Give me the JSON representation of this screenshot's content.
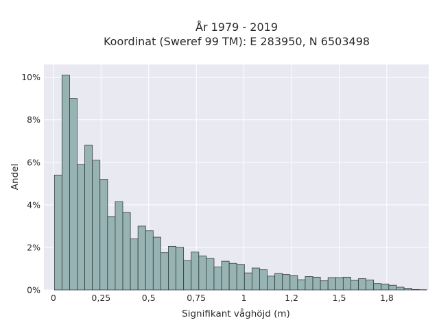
{
  "chart_data": {
    "type": "bar",
    "title": [
      "År 1979 - 2019",
      "Koordinat (Sweref 99 TM): E 283950, N 6503498"
    ],
    "xlabel": "Signifikant våghöjd (m)",
    "ylabel": "Andel",
    "xlim": [
      -0.05,
      1.97
    ],
    "ylim": [
      0,
      0.106
    ],
    "xticks": [
      {
        "value": 0,
        "label": "0"
      },
      {
        "value": 0.25,
        "label": "0,25"
      },
      {
        "value": 0.5,
        "label": "0,5"
      },
      {
        "value": 0.75,
        "label": "0,75"
      },
      {
        "value": 1.0,
        "label": "1"
      },
      {
        "value": 1.25,
        "label": "1,2"
      },
      {
        "value": 1.5,
        "label": "1,5"
      },
      {
        "value": 1.75,
        "label": "1,8"
      }
    ],
    "yticks": [
      {
        "value": 0,
        "label": "0%"
      },
      {
        "value": 0.02,
        "label": "2%"
      },
      {
        "value": 0.04,
        "label": "4%"
      },
      {
        "value": 0.06,
        "label": "6%"
      },
      {
        "value": 0.08,
        "label": "8%"
      },
      {
        "value": 0.1,
        "label": "10%"
      }
    ],
    "grid": true,
    "bin_start": 0.005,
    "bin_width": 0.0399,
    "values": [
      0.054,
      0.101,
      0.09,
      0.059,
      0.068,
      0.061,
      0.052,
      0.0345,
      0.0415,
      0.0365,
      0.024,
      0.03,
      0.0278,
      0.0248,
      0.0175,
      0.0205,
      0.02,
      0.0138,
      0.0178,
      0.016,
      0.0148,
      0.0108,
      0.0135,
      0.0125,
      0.012,
      0.008,
      0.0103,
      0.0095,
      0.0065,
      0.0078,
      0.0072,
      0.0068,
      0.0048,
      0.0063,
      0.006,
      0.0043,
      0.0058,
      0.0058,
      0.006,
      0.0045,
      0.0053,
      0.0047,
      0.003,
      0.0028,
      0.0022,
      0.0013,
      0.0008,
      0.0002,
      0.0001
    ],
    "colors": {
      "bar_fill": "#97b3b3",
      "bar_stroke": "#2f3b3b",
      "plot_bg": "#e9e9f2",
      "grid": "#ffffff"
    }
  }
}
